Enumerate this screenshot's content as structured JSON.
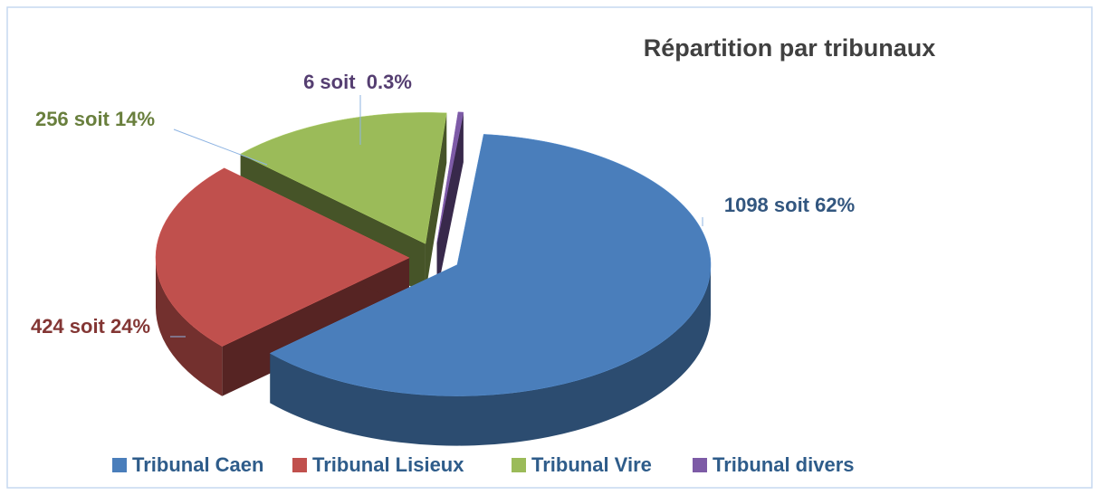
{
  "chart_data": {
    "type": "pie",
    "title": "Répartition par tribunaux",
    "categories": [
      "Tribunal Caen",
      "Tribunal Lisieux",
      "Tribunal Vire",
      "Tribunal divers"
    ],
    "values": [
      1098,
      424,
      256,
      6
    ],
    "value_labels": [
      "1098 soit 62%",
      "424 soit 24%",
      "256 soit 14%",
      "6 soit  0.3%"
    ],
    "colors": [
      "#4a7ebb",
      "#c0504d",
      "#9bbb59",
      "#7d5ba6"
    ],
    "legend": "bottom"
  }
}
